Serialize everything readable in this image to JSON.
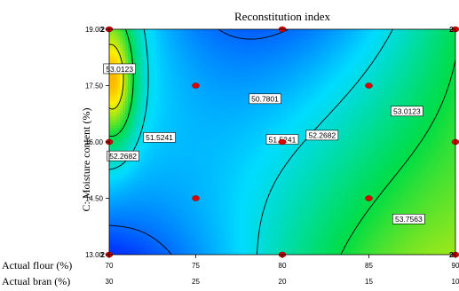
{
  "chart_data": {
    "type": "contour",
    "title": "Reconstitution index",
    "ylabel": "C: Moisture content (%)",
    "x_axes": [
      {
        "label": "Actual flour (%)",
        "ticks": [
          70,
          75,
          80,
          85,
          90
        ]
      },
      {
        "label": "Actual bran (%)",
        "ticks": [
          30,
          25,
          20,
          15,
          10
        ]
      }
    ],
    "xlim": [
      70,
      90
    ],
    "ylim": [
      13.0,
      19.0
    ],
    "y_ticks": [
      "13.00",
      "14.50",
      "16.00",
      "17.50",
      "19.00"
    ],
    "contour_levels": [
      {
        "value": 50.7801,
        "label": "50.7801",
        "label_at": [
          79.0,
          17.15
        ]
      },
      {
        "value": 51.5241,
        "label": "51.5241",
        "label_at": [
          72.9,
          16.12
        ]
      },
      {
        "value": 51.5241,
        "label": "51.5241",
        "label_at": [
          80.0,
          16.07
        ]
      },
      {
        "value": 52.2682,
        "label": "52.2682",
        "label_at": [
          70.8,
          15.63
        ]
      },
      {
        "value": 52.2682,
        "label": "52.2682",
        "label_at": [
          82.3,
          16.18
        ]
      },
      {
        "value": 53.0123,
        "label": "53.0123",
        "label_at": [
          70.6,
          17.95
        ]
      },
      {
        "value": 53.0123,
        "label": "53.0123",
        "label_at": [
          87.2,
          16.82
        ]
      },
      {
        "value": 53.7563,
        "label": "53.7563",
        "label_at": [
          87.3,
          13.95
        ]
      }
    ],
    "design_points": [
      {
        "x": 70,
        "y": 13.0,
        "replicates": 2
      },
      {
        "x": 80,
        "y": 13.0,
        "replicates": 1
      },
      {
        "x": 90,
        "y": 13.0,
        "replicates": 2
      },
      {
        "x": 75,
        "y": 14.5,
        "replicates": 1
      },
      {
        "x": 85,
        "y": 14.5,
        "replicates": 1
      },
      {
        "x": 70,
        "y": 16.0,
        "replicates": 1
      },
      {
        "x": 80,
        "y": 16.0,
        "replicates": 1
      },
      {
        "x": 90,
        "y": 16.0,
        "replicates": 1
      },
      {
        "x": 75,
        "y": 17.5,
        "replicates": 1
      },
      {
        "x": 85,
        "y": 17.5,
        "replicates": 1
      },
      {
        "x": 70,
        "y": 19.0,
        "replicates": 2
      },
      {
        "x": 80,
        "y": 19.0,
        "replicates": 1
      },
      {
        "x": 90,
        "y": 19.0,
        "replicates": 2
      }
    ],
    "colors": {
      "low": "#0033ff",
      "mid": "#00dd44",
      "high": "#ffee00",
      "peak": "#ff3300",
      "point": "#dd0000"
    }
  }
}
